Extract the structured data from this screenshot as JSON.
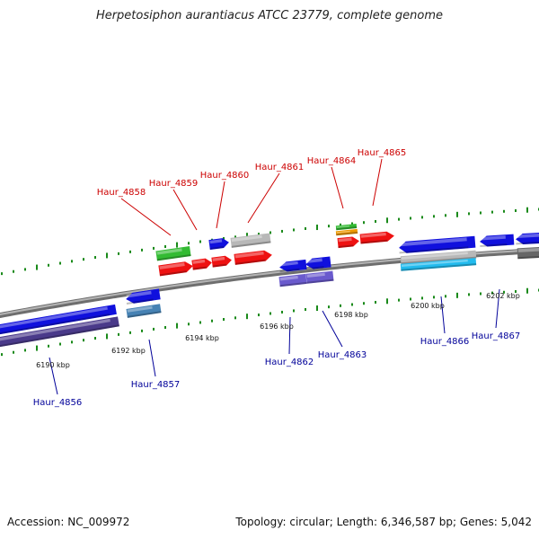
{
  "title": "Herpetosiphon aurantiacus ATCC 23779, complete genome",
  "footer": {
    "accession": "Accession: NC_009972",
    "summary": "Topology: circular; Length: 6,346,587 bp; Genes: 5,042"
  },
  "colors": {
    "forward_label": "#cc0000",
    "reverse_label": "#000099",
    "backbone": "#8a8a8a",
    "tick": "#1a8a1a",
    "red_gene": "#ee1111",
    "blue_gene": "#1010dd",
    "green_gene": "#33bb33",
    "gray_gene": "#b8b8b8",
    "orange_gene": "#ee9900",
    "purple_gene": "#6a5acd",
    "steel_gene": "#4682b4",
    "navy_gene": "#4a3a8a",
    "cyan_gene": "#22bbee",
    "dark_gray_gene": "#666666"
  },
  "ticks": [
    "6190 kbp",
    "6192 kbp",
    "6194 kbp",
    "6196 kbp",
    "6198 kbp",
    "6200 kbp",
    "6202 kbp"
  ],
  "forward_labels": [
    "Haur_4858",
    "Haur_4859",
    "Haur_4860",
    "Haur_4861",
    "Haur_4864",
    "Haur_4865"
  ],
  "reverse_labels": [
    "Haur_4856",
    "Haur_4857",
    "Haur_4862",
    "Haur_4863",
    "Haur_4866",
    "Haur_4867"
  ]
}
